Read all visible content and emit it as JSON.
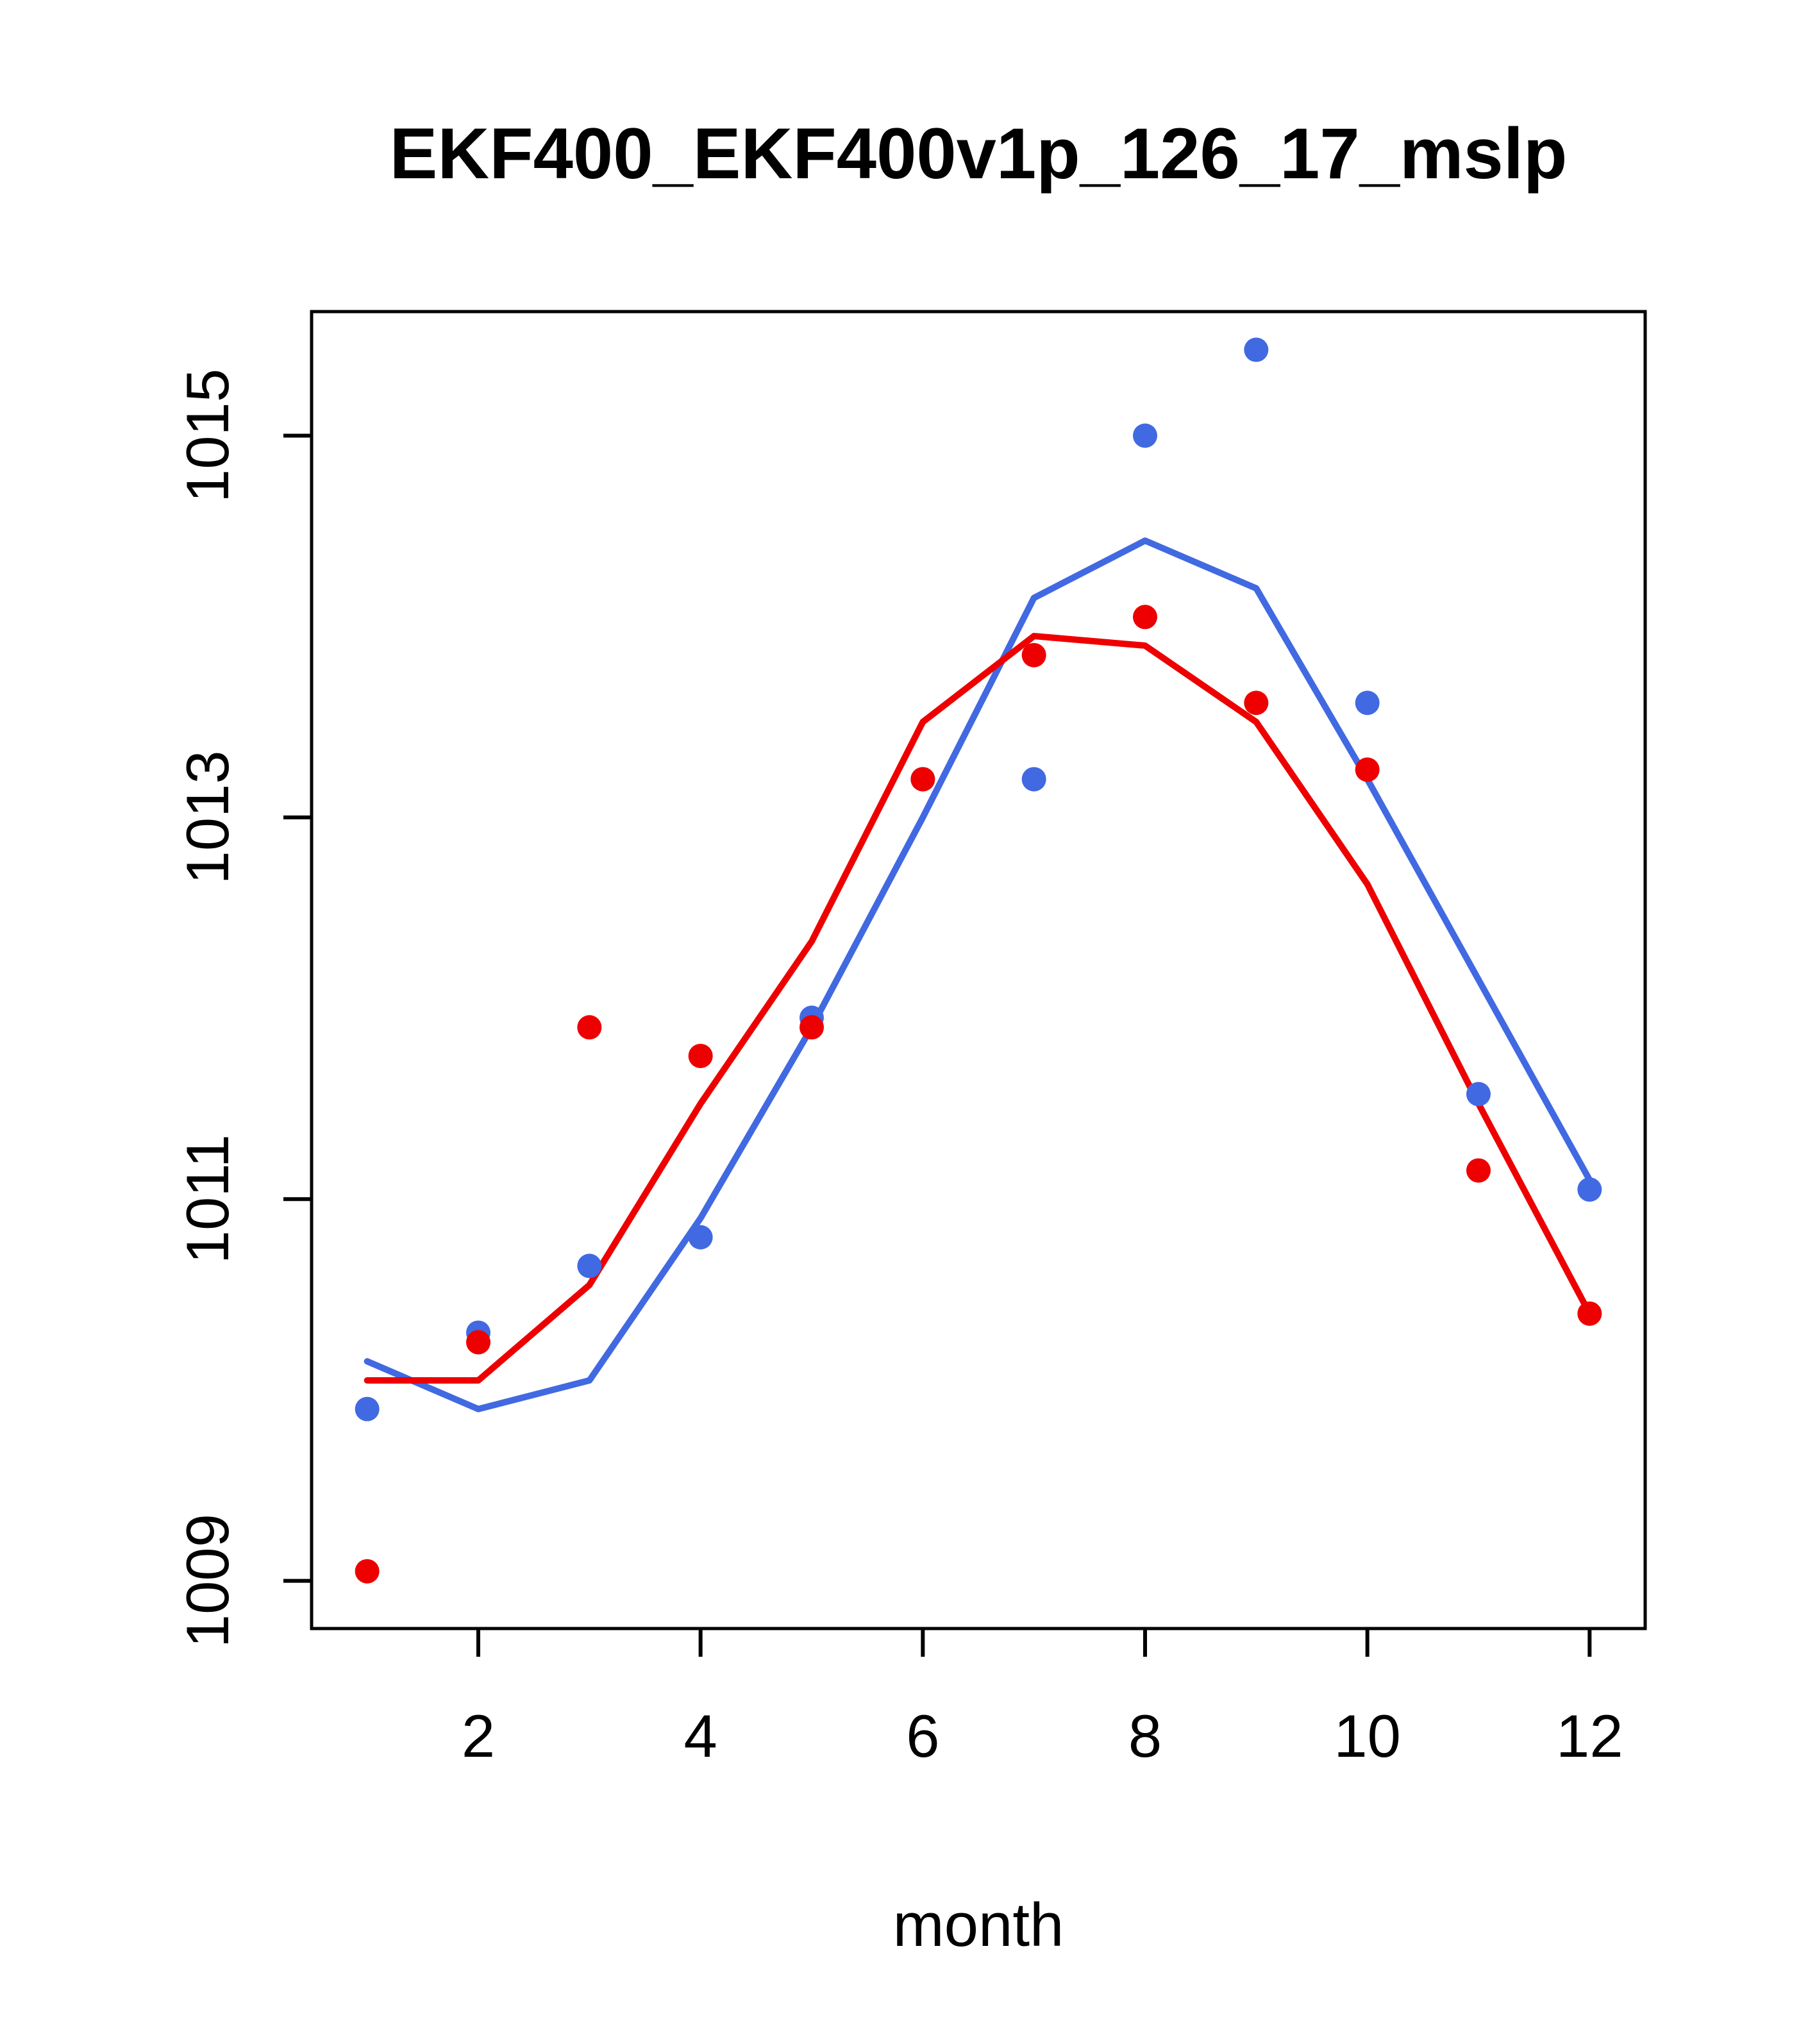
{
  "chart_data": {
    "type": "scatter",
    "title": "EKF400_EKF400v1p_126_17_mslp",
    "xlabel": "month",
    "ylabel": "",
    "x": [
      1,
      2,
      3,
      4,
      5,
      6,
      7,
      8,
      9,
      10,
      11,
      12
    ],
    "xticks": [
      2,
      4,
      6,
      8,
      10,
      12
    ],
    "yticks": [
      1009,
      1011,
      1013,
      1015
    ],
    "xlim": [
      0.5,
      12.5
    ],
    "ylim": [
      1008.75,
      1015.65
    ],
    "grid": false,
    "legend": null,
    "colors": {
      "blue": "#4169e1",
      "red": "#ee0000",
      "axis": "#000000",
      "background": "#ffffff"
    },
    "series": [
      {
        "name": "blue-monthly-points",
        "kind": "points",
        "color": "#4169e1",
        "values": [
          1009.9,
          1010.3,
          1010.65,
          1010.8,
          1011.95,
          1013.2,
          1013.2,
          1015.0,
          1015.45,
          1013.6,
          1011.55,
          1011.05
        ]
      },
      {
        "name": "red-monthly-points",
        "kind": "points",
        "color": "#ee0000",
        "values": [
          1009.05,
          1010.25,
          1011.9,
          1011.75,
          1011.9,
          1013.2,
          1013.85,
          1014.05,
          1013.6,
          1013.25,
          1011.15,
          1010.4
        ]
      },
      {
        "name": "blue-smoothed-line",
        "kind": "line",
        "color": "#4169e1",
        "values": [
          1010.15,
          1009.9,
          1010.05,
          1010.9,
          1011.9,
          1013.0,
          1014.15,
          1014.45,
          1014.2,
          1013.2,
          1012.15,
          1011.1
        ]
      },
      {
        "name": "red-smoothed-line",
        "kind": "line",
        "color": "#ee0000",
        "values": [
          1010.05,
          1010.05,
          1010.55,
          1011.5,
          1012.35,
          1013.5,
          1013.95,
          1013.9,
          1013.5,
          1012.65,
          1011.5,
          1010.4
        ]
      }
    ]
  }
}
